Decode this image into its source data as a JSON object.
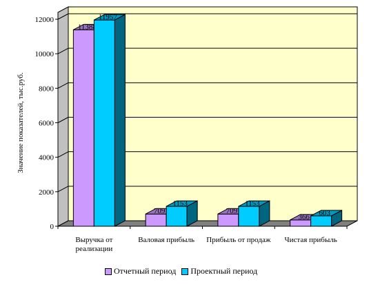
{
  "chart_data": {
    "type": "bar",
    "ylabel": "Значение показателей, тыс.руб.",
    "ylim": [
      0,
      12000
    ],
    "yticks": [
      0,
      2000,
      4000,
      6000,
      8000,
      10000,
      12000
    ],
    "categories": [
      "Выручка от реализации",
      "Валовая прибыль",
      "Прибыль от продаж",
      "Чистая прибыль"
    ],
    "category_lines": [
      [
        "Выручка от",
        "реализации"
      ],
      [
        "Валовая прибыль"
      ],
      [
        "Прибыль от продаж"
      ],
      [
        "Чистая прибыль"
      ]
    ],
    "series": [
      {
        "name": "Отчетный период",
        "values": [
          11388,
          709,
          709,
          366
        ],
        "color": "#cc99ff"
      },
      {
        "name": "Проектный период",
        "values": [
          11957,
          1153,
          1153,
          603
        ],
        "color": "#00ccff"
      }
    ],
    "wall_color": "#ffffcc",
    "floor_color": "#808080",
    "legend_position": "bottom",
    "grid": true
  }
}
